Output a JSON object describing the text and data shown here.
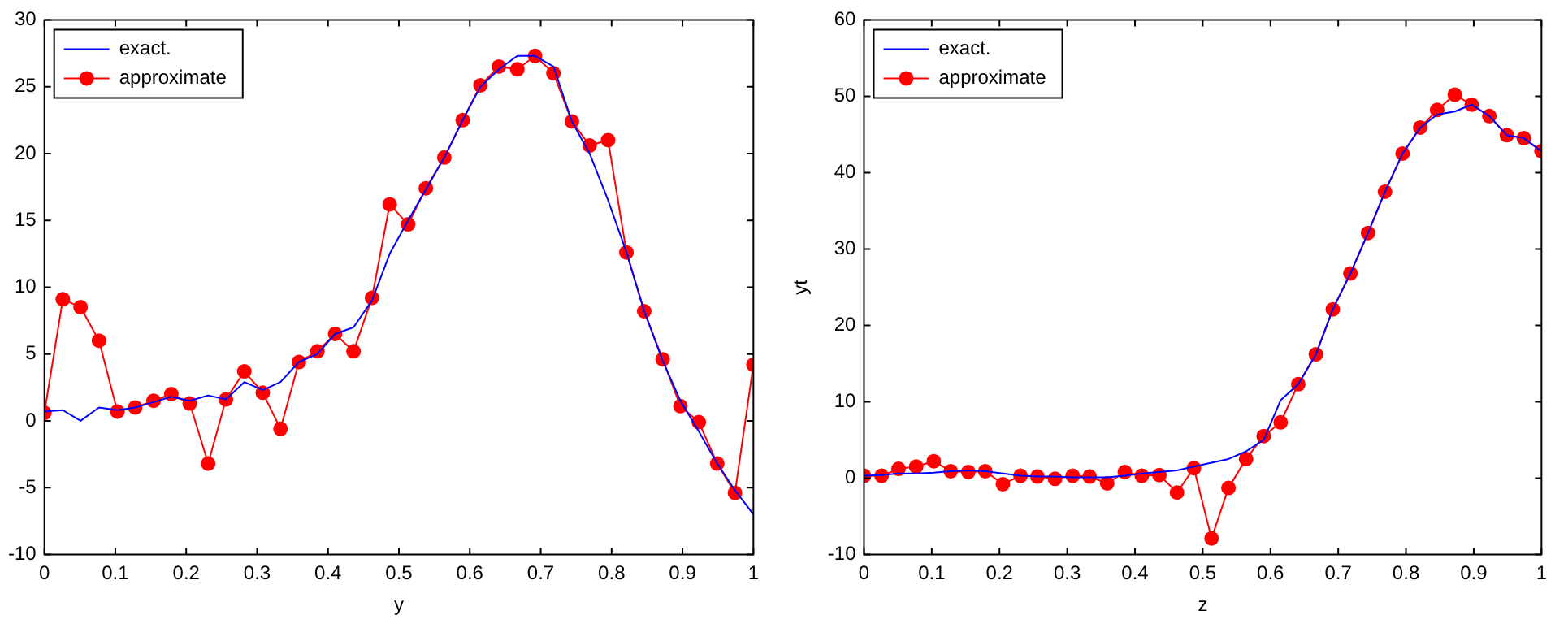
{
  "chart_data": [
    {
      "type": "line",
      "xlabel": "y",
      "x": [
        0,
        0.026,
        0.051,
        0.077,
        0.103,
        0.128,
        0.154,
        0.179,
        0.205,
        0.231,
        0.256,
        0.282,
        0.308,
        0.333,
        0.359,
        0.385,
        0.41,
        0.436,
        0.462,
        0.487,
        0.513,
        0.538,
        0.564,
        0.59,
        0.615,
        0.641,
        0.667,
        0.692,
        0.718,
        0.744,
        0.769,
        0.795,
        0.821,
        0.846,
        0.872,
        0.897,
        0.923,
        0.949,
        0.974,
        1
      ],
      "series": [
        {
          "name": "exact.",
          "color": "#0000ff",
          "marker": "none",
          "values": [
            0.7,
            0.8,
            0,
            1.0,
            0.8,
            1.0,
            1.4,
            1.8,
            1.5,
            1.9,
            1.6,
            2.9,
            2.3,
            2.9,
            4.4,
            5.0,
            6.5,
            7.0,
            9.0,
            12.5,
            15.0,
            17.3,
            19.7,
            22.5,
            25.0,
            26.3,
            27.3,
            27.3,
            26.5,
            22.4,
            20.0,
            16.5,
            12.6,
            8.2,
            4.5,
            1.5,
            -0.8,
            -3.2,
            -5.2,
            -7.0
          ]
        },
        {
          "name": "approximate",
          "color": "#ff0000",
          "marker": "circle",
          "values": [
            0.6,
            9.1,
            8.5,
            6.0,
            0.7,
            1.0,
            1.5,
            2.0,
            1.3,
            -3.2,
            1.6,
            3.7,
            2.1,
            -0.6,
            4.4,
            5.2,
            6.5,
            5.2,
            9.2,
            16.2,
            14.7,
            17.4,
            19.7,
            22.5,
            25.1,
            26.5,
            26.3,
            27.3,
            26.0,
            22.4,
            20.6,
            21.0,
            12.6,
            8.2,
            4.6,
            1.1,
            -0.1,
            -3.2,
            -5.4,
            4.2
          ]
        }
      ],
      "xlim": [
        0,
        1
      ],
      "xticks": [
        0,
        0.1,
        0.2,
        0.3,
        0.4,
        0.5,
        0.6,
        0.7,
        0.8,
        0.9,
        1
      ],
      "ylim": [
        -10,
        30
      ],
      "yticks": [
        -10,
        -5,
        0,
        5,
        10,
        15,
        20,
        25,
        30
      ],
      "grid": false,
      "legend": "top left"
    },
    {
      "type": "line",
      "xlabel": "z",
      "ylabel": "yt",
      "x": [
        0,
        0.026,
        0.051,
        0.077,
        0.103,
        0.128,
        0.154,
        0.179,
        0.205,
        0.231,
        0.256,
        0.282,
        0.308,
        0.333,
        0.359,
        0.385,
        0.41,
        0.436,
        0.462,
        0.487,
        0.513,
        0.538,
        0.564,
        0.59,
        0.615,
        0.641,
        0.667,
        0.692,
        0.718,
        0.744,
        0.769,
        0.795,
        0.821,
        0.846,
        0.872,
        0.897,
        0.923,
        0.949,
        0.974,
        1
      ],
      "series": [
        {
          "name": "exact.",
          "color": "#0000ff",
          "marker": "none",
          "values": [
            0.3,
            0.4,
            0.6,
            0.6,
            0.7,
            0.9,
            1.0,
            0.9,
            0.6,
            0.3,
            0.2,
            0.2,
            0.1,
            0.1,
            0.1,
            0.3,
            0.6,
            0.8,
            1.0,
            1.5,
            2.0,
            2.5,
            3.5,
            5.0,
            10.2,
            12.3,
            16.2,
            22.1,
            26.8,
            32.1,
            37.5,
            42.5,
            45.9,
            47.6,
            48.0,
            48.9,
            47.4,
            44.9,
            44.5,
            42.8
          ]
        },
        {
          "name": "approximate",
          "color": "#ff0000",
          "marker": "circle",
          "values": [
            0.3,
            0.3,
            1.2,
            1.5,
            2.2,
            0.9,
            0.8,
            0.9,
            -0.8,
            0.3,
            0.2,
            -0.1,
            0.3,
            0.2,
            -0.7,
            0.8,
            0.3,
            0.4,
            -1.9,
            1.3,
            -7.9,
            -1.3,
            2.5,
            5.5,
            7.3,
            12.3,
            16.2,
            22.1,
            26.8,
            32.1,
            37.5,
            42.5,
            45.9,
            48.2,
            50.2,
            48.9,
            47.4,
            44.9,
            44.5,
            42.8
          ]
        }
      ],
      "xlim": [
        0,
        1
      ],
      "xticks": [
        0,
        0.1,
        0.2,
        0.3,
        0.4,
        0.5,
        0.6,
        0.7,
        0.8,
        0.9,
        1
      ],
      "ylim": [
        -10,
        60
      ],
      "yticks": [
        -10,
        0,
        10,
        20,
        30,
        40,
        50,
        60
      ],
      "grid": false,
      "legend": "top left"
    }
  ]
}
